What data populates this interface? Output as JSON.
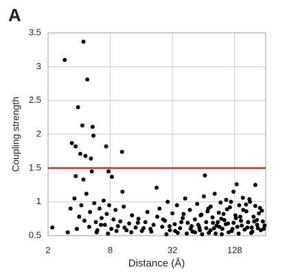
{
  "chart_data": {
    "type": "scatter",
    "panel_label": "A",
    "x_label": "Distance (Å)",
    "y_label": "Coupling strength",
    "log_x": true,
    "grid": true,
    "color": "#000000",
    "hline": 1.5,
    "hline_color": "#c0504d",
    "xlim": [
      2,
      256
    ],
    "xticks": [
      2,
      8,
      32,
      128
    ],
    "ylim": [
      0.5,
      3.5
    ],
    "yticks": [
      0.5,
      1,
      1.5,
      2,
      2.5,
      3,
      3.5
    ],
    "x": [
      2.9,
      4.4,
      4.8,
      3.9,
      4.3,
      5.4,
      5.5,
      3.4,
      3.7,
      7.3,
      10.4,
      4.1,
      4.6,
      5.2,
      7.7,
      8.3,
      5.3,
      3.7,
      4.4,
      10.5,
      22.5,
      66,
      134,
      203,
      2.2,
      3.1,
      3.3,
      3.6,
      4.0,
      4.2,
      4.5,
      4.7,
      5.0,
      5.1,
      5.6,
      5.8,
      6.0,
      6.3,
      6.6,
      6.9,
      7.1,
      7.4,
      7.8,
      8.2,
      8.6,
      9.0,
      9.5,
      10.0,
      10.8,
      11.5,
      12.2,
      13.0,
      14.1,
      15.0,
      16.2,
      17.5,
      18.3,
      19.6,
      21.0,
      22.8,
      24.0,
      25.5,
      27.1,
      28.8,
      30.2,
      32.0,
      33.7,
      35.4,
      37.9,
      40.3,
      42.5,
      45.0,
      47.2,
      50.1,
      52.8,
      55.6,
      58.3,
      61.0,
      64.4,
      67.9,
      71.2,
      74.8,
      78.3,
      82.0,
      85.7,
      89.9,
      93.6,
      97.4,
      101.8,
      106.0,
      110.5,
      115.2,
      120.0,
      124.7,
      130.3,
      136.0,
      141.8,
      147.5,
      153.9,
      160.0,
      166.4,
      173.0,
      180.2,
      187.5,
      195.1,
      203.0,
      211.4,
      220.0,
      229.3,
      240.1,
      28,
      36,
      44,
      53,
      62,
      72,
      84,
      96,
      112,
      140,
      30,
      39,
      48,
      57,
      68,
      79,
      91,
      105,
      122,
      150,
      170,
      190,
      215,
      245,
      26,
      34,
      41,
      49,
      59,
      70,
      81,
      95,
      108,
      125,
      145,
      165,
      185,
      210,
      235,
      250,
      60,
      75,
      88,
      100,
      118,
      132,
      155,
      178,
      198,
      225,
      3.8,
      5.9,
      6.5,
      7.6,
      9.2,
      11.0,
      12.8,
      14.8,
      16.8,
      20.0
    ],
    "values": [
      3.1,
      3.37,
      2.81,
      2.4,
      2.13,
      2.11,
      1.98,
      1.87,
      1.82,
      1.82,
      1.74,
      1.71,
      1.68,
      1.64,
      1.45,
      1.37,
      1.45,
      1.38,
      1.33,
      1.15,
      1.21,
      1.39,
      1.26,
      1.25,
      0.62,
      0.55,
      0.9,
      1.05,
      0.78,
      0.95,
      0.72,
      1.12,
      0.63,
      0.85,
      0.98,
      0.7,
      0.58,
      0.9,
      0.76,
      1.02,
      0.66,
      0.82,
      0.95,
      0.6,
      0.74,
      0.88,
      0.64,
      0.71,
      0.93,
      0.58,
      0.68,
      0.8,
      0.62,
      0.75,
      0.57,
      0.7,
      0.85,
      0.6,
      0.66,
      0.78,
      0.9,
      0.63,
      0.72,
      1.0,
      0.58,
      0.83,
      0.67,
      0.95,
      0.61,
      0.76,
      1.05,
      0.69,
      0.88,
      0.56,
      0.74,
      0.97,
      0.62,
      0.81,
      1.08,
      0.7,
      0.9,
      0.58,
      0.77,
      1.12,
      0.65,
      0.84,
      0.99,
      0.6,
      0.73,
      1.03,
      0.68,
      0.92,
      0.57,
      1.15,
      0.8,
      0.63,
      0.95,
      0.72,
      1.06,
      0.59,
      0.86,
      0.7,
      1.0,
      0.62,
      0.78,
      0.94,
      0.66,
      0.83,
      0.58,
      0.71,
      0.52,
      0.54,
      0.53,
      0.55,
      0.52,
      0.54,
      0.53,
      0.52,
      0.55,
      0.53,
      0.64,
      0.7,
      0.6,
      0.66,
      0.61,
      0.69,
      0.63,
      0.67,
      0.6,
      0.65,
      0.62,
      0.56,
      0.61,
      0.6,
      0.74,
      0.57,
      0.82,
      0.64,
      0.58,
      0.86,
      0.61,
      0.75,
      0.89,
      0.69,
      0.78,
      0.96,
      0.54,
      0.73,
      0.87,
      0.65,
      0.8,
      0.93,
      0.7,
      0.82,
      1.0,
      0.76,
      0.88,
      1.04,
      0.71,
      0.91,
      0.6,
      0.55,
      0.66,
      0.53,
      0.57,
      0.62,
      0.55,
      0.69,
      0.61,
      0.56
    ]
  }
}
